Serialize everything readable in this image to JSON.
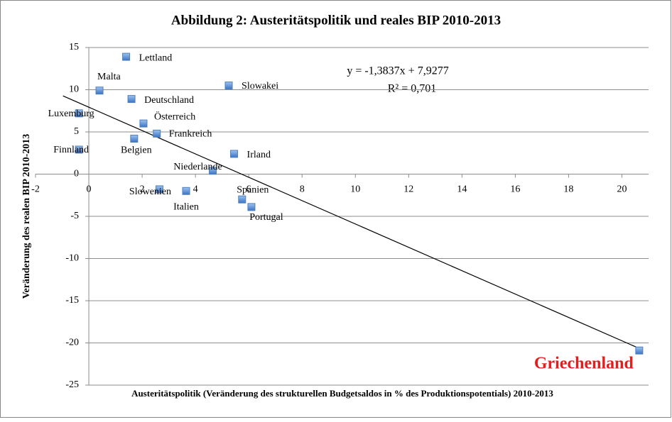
{
  "chart_data": {
    "type": "scatter",
    "title": "Abbildung 2: Austeritätspolitik und reales BIP 2010-2013",
    "x_label": "Austeritätspolitik (Veränderung des strukturellen Budgetsaldos in % des Produktionspotentials) 2010-2013",
    "y_label": "Veränderung des realen BIP 2010-2013",
    "color": "#4f81bd",
    "labels": [
      "Lettland",
      "Malta",
      "Deutschland",
      "Slowakei",
      "Luxemburg",
      "Österreich",
      "Frankreich",
      "Belgien",
      "Finnland",
      "Irland",
      "Niederlande",
      "Slowenien",
      "Italien",
      "Spanien",
      "Portugal",
      "Griechenland"
    ],
    "x": [
      1.4,
      0.4,
      1.6,
      5.25,
      -0.37,
      2.05,
      2.55,
      1.7,
      -0.37,
      5.45,
      4.65,
      2.65,
      3.65,
      5.75,
      6.1,
      20.65
    ],
    "values": [
      13.9,
      9.9,
      8.9,
      10.5,
      7.2,
      6.0,
      4.8,
      4.2,
      2.9,
      2.4,
      0.4,
      -1.8,
      -2.0,
      -3.0,
      -3.9,
      -20.9
    ],
    "trendline": {
      "equation": "y = -1,3837x + 7,9277",
      "r2": "R² = 0,701"
    },
    "xlim": [
      -2,
      21
    ],
    "ylim": [
      -25,
      15
    ],
    "xticks": [
      -2,
      0,
      2,
      4,
      6,
      8,
      10,
      12,
      14,
      16,
      18,
      20
    ],
    "yticks": [
      -25,
      -20,
      -15,
      -10,
      -5,
      0,
      5,
      10,
      15
    ],
    "grid": true
  }
}
